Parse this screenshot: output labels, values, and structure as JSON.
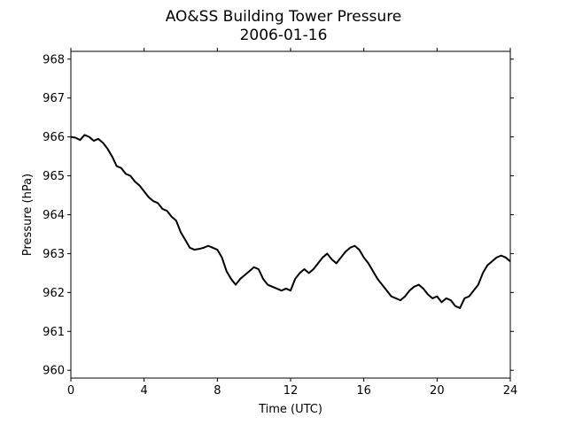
{
  "chart_data": {
    "type": "line",
    "title": "AO&SS Building Tower Pressure",
    "subtitle": "2006-01-16",
    "xlabel": "Time (UTC)",
    "ylabel": "Pressure (hPa)",
    "xlim": [
      0,
      24
    ],
    "ylim": [
      959.8,
      968.2
    ],
    "xticks": [
      0,
      4,
      8,
      12,
      16,
      20,
      24
    ],
    "yticks": [
      960,
      961,
      962,
      963,
      964,
      965,
      966,
      967,
      968
    ],
    "grid": false,
    "legend": "none",
    "line_color": "#000000",
    "series": [
      {
        "x": [
          0,
          0.25,
          0.5,
          0.75,
          1.0,
          1.25,
          1.5,
          1.75,
          2.0,
          2.25,
          2.5,
          2.75,
          3.0,
          3.25,
          3.5,
          3.75,
          4.0,
          4.25,
          4.5,
          4.75,
          5.0,
          5.25,
          5.5,
          5.75,
          6.0,
          6.25,
          6.5,
          6.75,
          7.0,
          7.25,
          7.5,
          7.75,
          8.0,
          8.25,
          8.5,
          8.75,
          9.0,
          9.25,
          9.5,
          9.75,
          10.0,
          10.25,
          10.5,
          10.75,
          11.0,
          11.25,
          11.5,
          11.75,
          12.0,
          12.25,
          12.5,
          12.75,
          13.0,
          13.25,
          13.5,
          13.75,
          14.0,
          14.25,
          14.5,
          14.75,
          15.0,
          15.25,
          15.5,
          15.75,
          16.0,
          16.25,
          16.5,
          16.75,
          17.0,
          17.25,
          17.5,
          17.75,
          18.0,
          18.25,
          18.5,
          18.75,
          19.0,
          19.25,
          19.5,
          19.75,
          20.0,
          20.25,
          20.5,
          20.75,
          21.0,
          21.25,
          21.5,
          21.75,
          22.0,
          22.25,
          22.5,
          22.75,
          23.0,
          23.25,
          23.5,
          23.75,
          24.0
        ],
        "y": [
          966.0,
          965.98,
          965.92,
          966.05,
          966.0,
          965.9,
          965.95,
          965.85,
          965.7,
          965.5,
          965.25,
          965.2,
          965.05,
          965.0,
          964.85,
          964.75,
          964.6,
          964.45,
          964.35,
          964.3,
          964.15,
          964.1,
          963.95,
          963.85,
          963.55,
          963.35,
          963.15,
          963.1,
          963.12,
          963.15,
          963.2,
          963.15,
          963.1,
          962.9,
          962.55,
          962.35,
          962.2,
          962.35,
          962.45,
          962.55,
          962.65,
          962.6,
          962.35,
          962.2,
          962.15,
          962.1,
          962.05,
          962.1,
          962.05,
          962.35,
          962.5,
          962.6,
          962.5,
          962.6,
          962.75,
          962.9,
          963.0,
          962.85,
          962.75,
          962.9,
          963.05,
          963.15,
          963.2,
          963.1,
          962.9,
          962.75,
          962.55,
          962.35,
          962.2,
          962.05,
          961.9,
          961.85,
          961.8,
          961.9,
          962.05,
          962.15,
          962.2,
          962.1,
          961.95,
          961.85,
          961.9,
          961.75,
          961.85,
          961.8,
          961.65,
          961.6,
          961.85,
          961.9,
          962.05,
          962.2,
          962.5,
          962.7,
          962.8,
          962.9,
          962.95,
          962.9,
          962.8
        ]
      }
    ]
  }
}
